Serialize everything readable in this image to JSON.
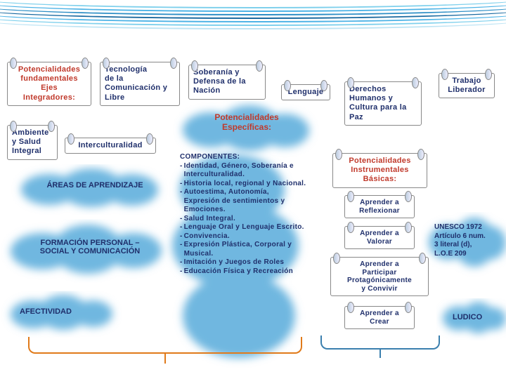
{
  "colors": {
    "wave1": "#4db3e6",
    "wave2": "#2e8fc6",
    "wave3": "#1a6aa0",
    "wave4": "#7fd0ec",
    "navy": "#1f2f6b",
    "red": "#c0392b",
    "cloud": "#6fb7e0",
    "bracket_red": "#e07a1a",
    "bracket_blue": "#3a7fae"
  },
  "boxes": {
    "potencialidades_fundamentales": "Potencialidades\nfundamentales\nEjes\nIntegradores:",
    "tecnologia": "Tecnología\nde la\nComunicación y\nLibre",
    "soberania": "Soberanía y\nDefensa de la\nNación",
    "lenguaje": "Lenguaje",
    "trabajo": "Trabajo\nLiberador",
    "derechos": "Derechos\nHumanos y\nCultura para la\nPaz",
    "ambiente": "Ambiente\ny Salud\nIntegral",
    "interculturalidad": "Interculturalidad",
    "potencialidades_instrumentales": "Potencialidades\nInstrumentales\nBásicas:",
    "aprender_reflexionar": "Aprender a\nReflexionar",
    "aprender_valorar": "Aprender a\nValorar",
    "aprender_participar": "Aprender a\nParticipar\nProtagónicamente\ny Convivir",
    "aprender_crear": "Aprender a\nCrear"
  },
  "clouds": {
    "potencialidades_especificas": "Potencialidades\nEspecíficas:",
    "areas": "ÁREAS DE APRENDIZAJE",
    "formacion": "FORMACIÓN PERSONAL –\nSOCIAL Y COMUNICACIÓN",
    "afectividad": "AFECTIVIDAD",
    "unesco": "UNESCO 1972\nArtículo 6 num.\n3 literal (d),\nL.O.E 209",
    "ludico": "LUDICO"
  },
  "componentes": {
    "title": "COMPONENTES:",
    "items": [
      "Identidad, Género, Soberanía e Interculturalidad.",
      "Historia local, regional y Nacional.",
      "Autoestima, Autonomía, Expresión de sentimientos y Emociones.",
      "Salud Integral.",
      "Lenguaje Oral y Lenguaje Escrito.",
      "Convivencia.",
      "Expresión Plástica, Corporal y Musical.",
      "Imitación y Juegos de Roles",
      "Educación Física y Recreación"
    ]
  }
}
